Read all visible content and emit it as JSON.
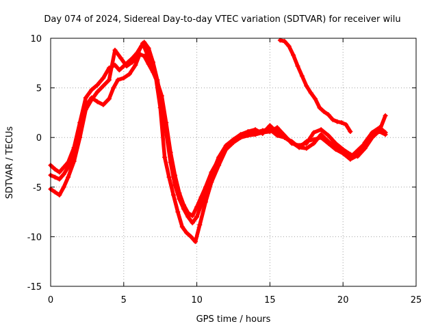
{
  "chart_data": {
    "type": "line",
    "title": "Day 074 of 2024, Sidereal Day-to-day VTEC variation (SDTVAR) for receiver wilu",
    "xlabel": "GPS time / hours",
    "ylabel": "SDTVAR / TECUs",
    "xlim": [
      0,
      25
    ],
    "ylim": [
      -15,
      10
    ],
    "xticks": [
      0,
      5,
      10,
      15,
      20,
      25
    ],
    "yticks": [
      -15,
      -10,
      -5,
      0,
      5,
      10
    ],
    "grid": true,
    "marker": "+",
    "color": "#ff0000",
    "series": [
      {
        "name": "trace-1",
        "x": [
          0.0,
          0.3,
          0.6,
          0.9,
          1.2,
          1.6,
          2.0,
          2.4,
          2.8,
          3.2,
          3.6,
          4.0,
          4.4,
          4.7,
          5.0,
          5.3,
          5.6,
          5.9,
          6.2,
          6.4,
          6.7,
          7.0,
          7.3,
          7.6,
          7.9,
          8.2,
          8.5,
          8.8,
          9.1,
          9.4,
          9.7,
          10.0,
          10.3,
          10.6,
          11.0,
          11.5,
          12.0,
          12.5,
          13.0,
          13.5,
          14.0,
          14.5,
          15.0,
          15.5,
          16.0,
          16.5,
          17.0,
          17.5,
          18.0,
          18.5,
          19.0,
          19.5,
          20.0,
          20.5,
          21.0,
          21.5,
          22.0,
          22.5,
          22.9
        ],
        "y": [
          -2.8,
          -3.2,
          -3.5,
          -3.0,
          -2.5,
          -1.0,
          1.5,
          4.0,
          4.8,
          5.3,
          6.0,
          7.0,
          7.3,
          6.8,
          7.2,
          7.6,
          8.0,
          8.5,
          9.2,
          9.6,
          9.0,
          7.6,
          5.8,
          3.5,
          0.5,
          -2.5,
          -4.8,
          -6.2,
          -7.2,
          -8.0,
          -8.6,
          -8.0,
          -6.8,
          -5.5,
          -3.8,
          -2.0,
          -0.8,
          -0.2,
          0.3,
          0.5,
          0.5,
          0.7,
          0.8,
          0.2,
          0.0,
          -0.5,
          -1.0,
          -1.1,
          -0.6,
          0.3,
          -0.4,
          -1.0,
          -1.5,
          -2.0,
          -1.3,
          -0.6,
          0.2,
          0.6,
          0.3
        ]
      },
      {
        "name": "trace-2",
        "x": [
          0.0,
          0.3,
          0.6,
          0.9,
          1.2,
          1.6,
          2.0,
          2.4,
          2.8,
          3.2,
          3.6,
          4.0,
          4.3,
          4.6,
          5.0,
          5.4,
          5.8,
          6.1,
          6.4,
          6.7,
          7.0,
          7.3,
          7.6,
          7.9,
          8.2,
          8.5,
          8.8,
          9.1,
          9.4,
          9.7,
          10.0,
          10.3,
          10.6,
          11.0,
          11.5,
          12.0,
          12.5,
          13.0,
          13.5,
          14.0,
          14.5,
          15.0,
          15.5,
          16.0,
          16.5,
          17.0,
          17.5,
          18.0,
          18.5,
          19.0,
          19.5,
          20.0,
          20.5,
          21.0,
          21.5,
          22.0,
          22.5,
          22.9
        ],
        "y": [
          -3.8,
          -4.0,
          -4.2,
          -3.7,
          -3.0,
          -1.6,
          0.8,
          3.2,
          4.0,
          3.6,
          3.3,
          3.9,
          5.0,
          5.8,
          6.0,
          6.4,
          7.3,
          8.4,
          8.2,
          7.4,
          6.6,
          5.6,
          4.2,
          1.5,
          -1.5,
          -3.8,
          -5.6,
          -6.8,
          -7.6,
          -7.9,
          -7.0,
          -6.0,
          -5.0,
          -3.5,
          -2.2,
          -1.2,
          -0.5,
          0.0,
          0.2,
          0.3,
          0.5,
          0.6,
          1.0,
          0.2,
          -0.6,
          -0.8,
          -0.6,
          0.5,
          0.8,
          0.2,
          -0.6,
          -1.2,
          -1.7,
          -1.9,
          -1.1,
          0.0,
          0.7,
          2.2
        ]
      },
      {
        "name": "trace-3",
        "x": [
          0.0,
          0.3,
          0.6,
          0.9,
          1.2,
          1.6,
          2.0,
          2.4,
          2.8,
          3.2,
          3.6,
          4.0,
          4.4,
          4.8,
          5.2,
          5.6,
          6.0,
          6.3,
          6.6,
          6.9,
          7.2,
          7.5,
          7.8,
          8.1,
          8.4,
          8.7,
          9.0,
          9.3,
          9.6,
          9.9,
          10.2,
          10.6,
          11.0,
          11.5,
          12.0,
          12.5,
          13.0,
          13.5,
          14.0,
          14.5,
          15.0,
          15.5,
          16.0,
          16.5,
          17.0,
          17.5,
          18.0,
          18.5,
          19.0,
          19.5,
          20.0,
          20.5,
          21.0,
          21.5,
          22.0,
          22.5,
          22.9
        ],
        "y": [
          -5.2,
          -5.5,
          -5.8,
          -5.0,
          -4.0,
          -2.4,
          0.0,
          2.8,
          3.8,
          4.6,
          5.2,
          5.8,
          8.8,
          8.0,
          7.2,
          7.6,
          8.6,
          9.5,
          8.4,
          7.2,
          6.0,
          3.0,
          -2.0,
          -4.0,
          -5.8,
          -7.5,
          -9.0,
          -9.6,
          -10.0,
          -10.5,
          -8.8,
          -6.5,
          -4.5,
          -2.8,
          -1.2,
          -0.3,
          0.3,
          0.6,
          0.8,
          0.4,
          1.2,
          0.5,
          0.0,
          -0.4,
          -1.0,
          -0.4,
          -0.2,
          0.0,
          -0.6,
          -1.2,
          -1.6,
          -2.2,
          -1.8,
          -0.5,
          0.5,
          1.0,
          0.5
        ]
      },
      {
        "name": "trace-4",
        "x": [
          15.7,
          16.0,
          16.3,
          16.6,
          16.9,
          17.2,
          17.5,
          17.8,
          18.1,
          18.4,
          18.7,
          19.0,
          19.3,
          19.6,
          19.9,
          20.2,
          20.5
        ],
        "y": [
          9.8,
          9.7,
          9.2,
          8.3,
          7.2,
          6.2,
          5.2,
          4.5,
          3.9,
          3.0,
          2.6,
          2.3,
          1.8,
          1.6,
          1.5,
          1.3,
          0.6
        ]
      }
    ]
  }
}
